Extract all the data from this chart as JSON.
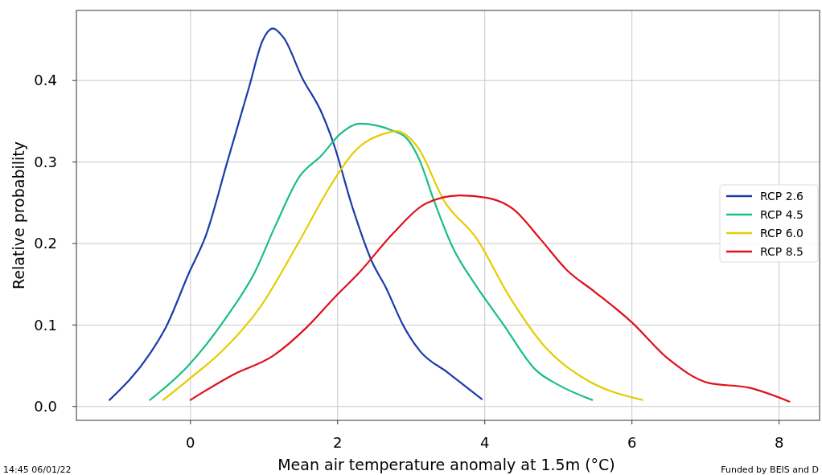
{
  "chart_data": {
    "type": "line",
    "xlabel": "Mean air temperature anomaly at 1.5m (°C)",
    "ylabel": "Relative probability",
    "xlim": [
      -1.55,
      8.55
    ],
    "ylim": [
      -0.017,
      0.486
    ],
    "xticks": [
      0,
      2,
      4,
      6,
      8
    ],
    "yticks": [
      {
        "value": 0,
        "label": "0.0"
      },
      0.1,
      0.2,
      0.3,
      0.4
    ],
    "grid": true,
    "legend": "right",
    "line_style": "solid",
    "marker": "none",
    "annotations": [
      "14:45 06/01/22",
      "Funded by BEIS and D"
    ],
    "series": [
      {
        "name": "RCP 2.6",
        "color": "#1a3caa",
        "x": [
          -1.1,
          -0.55,
          -0.33,
          -0.02,
          0.21,
          0.5,
          0.8,
          0.98,
          1.12,
          1.27,
          1.52,
          1.78,
          1.94,
          2.21,
          2.47,
          2.65,
          2.9,
          3.12,
          3.49,
          3.96
        ],
        "values": [
          0.008,
          0.065,
          0.098,
          0.164,
          0.21,
          0.3,
          0.393,
          0.449,
          0.464,
          0.452,
          0.403,
          0.361,
          0.324,
          0.242,
          0.177,
          0.147,
          0.098,
          0.068,
          0.042,
          0.009
        ]
      },
      {
        "name": "RCP 4.5",
        "color": "#1abf80",
        "x": [
          -0.55,
          -0.04,
          0.5,
          0.87,
          1.16,
          1.48,
          1.78,
          2.03,
          2.3,
          2.76,
          2.94,
          3.12,
          3.3,
          3.56,
          3.89,
          4.25,
          4.69,
          5.01,
          5.46
        ],
        "values": [
          0.008,
          0.049,
          0.111,
          0.164,
          0.223,
          0.282,
          0.308,
          0.334,
          0.347,
          0.338,
          0.329,
          0.301,
          0.255,
          0.196,
          0.147,
          0.101,
          0.045,
          0.026,
          0.008
        ]
      },
      {
        "name": "RCP 6.0",
        "color": "#e6cc00",
        "x": [
          -0.37,
          -0.04,
          0.43,
          0.94,
          1.48,
          1.89,
          2.21,
          2.68,
          2.8,
          3.09,
          3.45,
          3.89,
          4.32,
          4.83,
          5.34,
          6.14
        ],
        "values": [
          0.008,
          0.032,
          0.068,
          0.121,
          0.203,
          0.269,
          0.311,
          0.336,
          0.338,
          0.318,
          0.252,
          0.206,
          0.137,
          0.072,
          0.035,
          0.008
        ]
      },
      {
        "name": "RCP 8.5",
        "color": "#e0101a",
        "x": [
          0,
          0.58,
          1.12,
          1.59,
          1.96,
          2.29,
          2.76,
          3.2,
          3.66,
          4.03,
          4.39,
          4.75,
          5.12,
          5.49,
          5.99,
          6.5,
          7.04,
          7.59,
          8.14
        ],
        "values": [
          0.008,
          0.039,
          0.062,
          0.098,
          0.134,
          0.164,
          0.213,
          0.249,
          0.259,
          0.256,
          0.242,
          0.206,
          0.167,
          0.141,
          0.104,
          0.058,
          0.029,
          0.023,
          0.006
        ]
      }
    ]
  }
}
